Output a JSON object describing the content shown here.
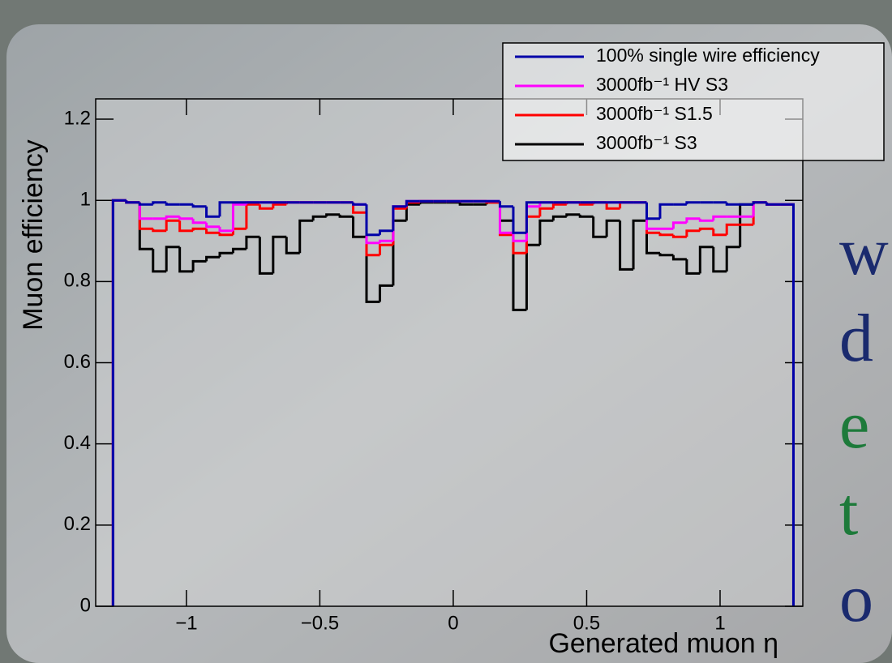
{
  "chart_data": {
    "type": "histogram",
    "xlabel": "Generated muon η",
    "ylabel": "Muon efficiency",
    "bins": [
      -1.275,
      -1.225,
      -1.175,
      -1.125,
      -1.075,
      -1.025,
      -0.975,
      -0.925,
      -0.875,
      -0.825,
      -0.775,
      -0.725,
      -0.675,
      -0.625,
      -0.575,
      -0.525,
      -0.475,
      -0.425,
      -0.375,
      -0.325,
      -0.275,
      -0.225,
      -0.175,
      -0.125,
      -0.075,
      -0.025,
      0.025,
      0.075,
      0.125,
      0.175,
      0.225,
      0.275,
      0.325,
      0.375,
      0.425,
      0.475,
      0.525,
      0.575,
      0.625,
      0.675,
      0.725,
      0.775,
      0.825,
      0.875,
      0.925,
      0.975,
      1.025,
      1.075,
      1.125,
      1.175,
      1.225,
      1.275
    ],
    "series": [
      {
        "name": "100% single wire efficiency",
        "color": "#0000a8",
        "values": [
          1.0,
          0.995,
          0.99,
          0.995,
          0.99,
          0.99,
          0.985,
          0.96,
          0.995,
          0.995,
          0.995,
          0.995,
          0.995,
          0.995,
          0.995,
          0.995,
          0.995,
          0.995,
          0.99,
          0.915,
          0.925,
          0.985,
          0.998,
          0.998,
          0.998,
          0.998,
          0.998,
          0.998,
          0.998,
          0.985,
          0.92,
          0.995,
          0.995,
          0.995,
          0.995,
          0.995,
          0.995,
          0.995,
          0.995,
          0.995,
          0.955,
          0.99,
          0.99,
          0.995,
          0.995,
          0.995,
          0.99,
          0.99,
          0.995,
          0.99,
          0.99
        ]
      },
      {
        "name": "3000fb⁻¹ HV S3",
        "color": "#ff00ff",
        "values": [
          1.0,
          0.995,
          0.955,
          0.955,
          0.96,
          0.955,
          0.945,
          0.935,
          0.925,
          0.99,
          0.995,
          0.995,
          0.995,
          0.995,
          0.995,
          0.995,
          0.995,
          0.995,
          0.99,
          0.895,
          0.9,
          0.985,
          0.998,
          0.998,
          0.998,
          0.998,
          0.998,
          0.998,
          0.998,
          0.92,
          0.9,
          0.985,
          0.995,
          0.995,
          0.995,
          0.995,
          0.995,
          0.995,
          0.995,
          0.995,
          0.93,
          0.93,
          0.945,
          0.955,
          0.95,
          0.96,
          0.96,
          0.96,
          0.995,
          0.99,
          0.99
        ]
      },
      {
        "name": "3000fb⁻¹ S1.5",
        "color": "#ff0000",
        "values": [
          1.0,
          0.995,
          0.93,
          0.925,
          0.95,
          0.925,
          0.93,
          0.92,
          0.915,
          0.93,
          0.99,
          0.98,
          0.99,
          0.995,
          0.995,
          0.995,
          0.995,
          0.995,
          0.97,
          0.865,
          0.89,
          0.98,
          0.995,
          0.998,
          0.998,
          0.998,
          0.998,
          0.998,
          0.995,
          0.915,
          0.87,
          0.96,
          0.98,
          0.99,
          0.995,
          0.99,
          0.995,
          0.98,
          0.995,
          0.995,
          0.92,
          0.915,
          0.91,
          0.925,
          0.93,
          0.915,
          0.94,
          0.94,
          0.995,
          0.99,
          0.99
        ]
      },
      {
        "name": "3000fb⁻¹ S3",
        "color": "#000000",
        "values": [
          1.0,
          0.995,
          0.88,
          0.825,
          0.885,
          0.825,
          0.85,
          0.86,
          0.87,
          0.88,
          0.91,
          0.82,
          0.91,
          0.87,
          0.95,
          0.96,
          0.965,
          0.96,
          0.91,
          0.75,
          0.79,
          0.95,
          0.99,
          0.995,
          0.995,
          0.995,
          0.99,
          0.99,
          0.995,
          0.95,
          0.73,
          0.89,
          0.95,
          0.96,
          0.965,
          0.96,
          0.91,
          0.95,
          0.83,
          0.95,
          0.87,
          0.865,
          0.855,
          0.82,
          0.885,
          0.825,
          0.885,
          0.99,
          0.995,
          0.99,
          0.99
        ]
      }
    ],
    "xlim": [
      -1.34,
      1.31
    ],
    "ylim": [
      0,
      1.25
    ],
    "xticks": [
      {
        "value": -1,
        "label": "−1"
      },
      {
        "value": -0.5,
        "label": "−0.5"
      },
      0,
      0.5,
      1
    ],
    "yticks": [
      0,
      0.2,
      0.4,
      0.6,
      0.8,
      1,
      1.2
    ],
    "legend": "upper right"
  },
  "background_text": [
    {
      "text": "w",
      "color": "#1a2a6e"
    },
    {
      "text": "d",
      "color": "#1a2a6e"
    },
    {
      "text": "e",
      "color": "#1d7a3a"
    },
    {
      "text": "t",
      "color": "#1d7a3a"
    },
    {
      "text": "o",
      "color": "#1a2a6e"
    }
  ]
}
